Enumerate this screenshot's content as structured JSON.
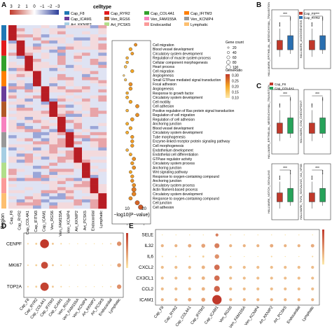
{
  "panels": {
    "A": "A",
    "B": "B",
    "C": "C",
    "D": "D",
    "E": "E"
  },
  "colors": {
    "cap_f8": "#1f78b4",
    "cap_ryr2": "#e31a1c",
    "cap_col4a1": "#33a02c",
    "cap_ifitm3": "#ff7f00",
    "cap_icam1": "#6a3d9a",
    "ven_rgs6": "#b15928",
    "ven_fam155a": "#f781bf",
    "ven_kcnip4": "#999999",
    "art_kknip2": "#a6cee3",
    "art_pcsk5": "#b2df8a",
    "endocardial": "#fb9a99",
    "lymphatic": "#fdbf6f",
    "heat_high": "#c0392b",
    "heat_low": "#2c3e9a",
    "dot_low": "#fde9a9",
    "dot_high": "#c0392b",
    "box_f8": "#c0392b",
    "box_ryr2": "#2a6fb0",
    "box_col4a1": "#27a35a"
  },
  "heatmap": {
    "scale_ticks": [
      "3",
      "2",
      "1",
      "0",
      "−1",
      "−2",
      "−3"
    ],
    "legend_title": "celltype",
    "legend_items": [
      "Cap_F8",
      "Cap_RYR2",
      "Cap_COL4A1",
      "Cap_IFITM3",
      "Cap_ICAM1",
      "Ven_RGS6",
      "Ven_FAM155A",
      "Ven_KCNIP4",
      "Art_KKNIP2",
      "Art_PCSK5",
      "Endocardial",
      "Lymphatic"
    ],
    "legend_keys": [
      "cap_f8",
      "cap_ryr2",
      "cap_col4a1",
      "cap_ifitm3",
      "cap_icam1",
      "ven_rgs6",
      "ven_fam155a",
      "ven_kcnip4",
      "art_kknip2",
      "art_pcsk5",
      "endocardial",
      "lymphatic"
    ],
    "columns": [
      "Cap_F8",
      "Cap_RYR2",
      "Cap_COL4A1",
      "Cap_IFITM3",
      "Cap_ICAM1",
      "Ven_RGS6",
      "Ven_FAM155A",
      "Ven_KCNIP4",
      "Art_KKNIP2",
      "Art_PCSK5",
      "Endocardial",
      "Lymphatic"
    ],
    "row_label": "Region"
  },
  "go": {
    "terms": [
      "Cell migration",
      "Blood vessel development",
      "Circulatory system development",
      "Regulation of muscle system process",
      "Cellular component morphogenesis",
      "Heart process",
      "Cell migration",
      "Angiogenesis",
      "Small GTPase mediated signal transduction",
      "Focal adhesion",
      "Angiogenesis",
      "Response to growth factor",
      "Circulatory system development",
      "Cell motility",
      "Cell adhesion",
      "Positive regulation of Ras protein signal transduction",
      "Regulation of cell migration",
      "Regulation of cell adhesion",
      "Anchoring junction",
      "Blood vessel development",
      "Circulatory system development",
      "Tube morphogenesis",
      "Enzyme-linked receptor protein signaling pathway",
      "Cell morphogenesis",
      "Endothelium development",
      "Endothelial cell differentiation",
      "GTPase regulator activity",
      "Circulatory system process",
      "Anchoring junction",
      "Wnt signaling pathway",
      "Response to oxygen-containing compound",
      "Anchoring junction",
      "Circulatory system process",
      "Actin filament-based process",
      "Circulatory system development",
      "Response to oxygen-containing compound",
      "Cell junction",
      "Cell adhesion"
    ],
    "xlabel": "−log10(P−value)",
    "x_ticks": [
      "10",
      "20"
    ],
    "size_legend_title": "Gene count",
    "size_legend_values": [
      "20",
      "40",
      "60",
      "80",
      "100"
    ],
    "color_legend_title": "GeneRatio",
    "color_legend_values": [
      "0.30",
      "0.25",
      "0.20",
      "0.15",
      "0.10"
    ]
  },
  "boxplots": [
    {
      "ylabel": "HALLMARK_EPITHELIAL_MESENCHYMAL_TRANSITION",
      "group": "B",
      "sig": "***",
      "legend": [
        "Cap_F8",
        "Cap_RYR2"
      ],
      "colors": [
        "box_f8",
        "box_ryr2"
      ]
    },
    {
      "ylabel": "HALLMARK_ANGIOGENESIS",
      "group": "B",
      "sig": "***",
      "legend": [
        "Cap_F8",
        "Cap_RYR2"
      ],
      "colors": [
        "box_f8",
        "box_ryr2"
      ]
    },
    {
      "ylabel": "HALLMARK_EPITHELIAL_MESENCHYMAL_TRANSITION",
      "group": "C",
      "sig": "***",
      "legend": [
        "Cap_F8",
        "Cap_COL4A1"
      ],
      "colors": [
        "box_f8",
        "box_col4a1"
      ]
    },
    {
      "ylabel": "HALLMARK_G2M_CHECKPOINT",
      "group": "C",
      "sig": "***",
      "legend": [
        "Cap_F8",
        "Cap_COL4A1"
      ],
      "colors": [
        "box_f8",
        "box_col4a1"
      ]
    },
    {
      "ylabel": "HALLMARK_NOTCH_SIGNALING",
      "group": "C",
      "sig": "***",
      "legend": [
        "Cap_F8",
        "Cap_COL4A1"
      ],
      "colors": [
        "box_f8",
        "box_col4a1"
      ]
    },
    {
      "ylabel": "HALLMARK_TNFA_SIGNALING_VIA_NFKB",
      "group": "C",
      "sig": "***",
      "legend": [
        "Cap_F8",
        "Cap_COL4A1"
      ],
      "colors": [
        "box_f8",
        "box_col4a1"
      ]
    }
  ],
  "dotD": {
    "genes": [
      "CENPF",
      "MKI67",
      "TOP2A"
    ],
    "columns": [
      "Cap_F8",
      "Cap_RYR2",
      "Cap_COL4A1",
      "Cap_IFITM3",
      "Cap_ICAM1",
      "Ven_RGS6",
      "Ven_FAM155A",
      "Ven_KCNIP4",
      "Art_KKNIP2",
      "Art_PCSK5",
      "Endocardial",
      "Lymphatic"
    ],
    "sizes": [
      [
        0.15,
        0.2,
        0.9,
        0.2,
        0.15,
        0.1,
        0.1,
        0.1,
        0.1,
        0.1,
        0.15,
        0.45
      ],
      [
        0.15,
        0.2,
        0.7,
        0.2,
        0.15,
        0.1,
        0.1,
        0.1,
        0.1,
        0.1,
        0.1,
        0.4
      ],
      [
        0.15,
        0.2,
        0.85,
        0.2,
        0.15,
        0.1,
        0.1,
        0.1,
        0.1,
        0.1,
        0.15,
        0.45
      ]
    ],
    "intensity": [
      [
        0.1,
        0.15,
        1.0,
        0.2,
        0.1,
        0.05,
        0.05,
        0.05,
        0.05,
        0.05,
        0.1,
        0.5
      ],
      [
        0.1,
        0.15,
        0.9,
        0.2,
        0.1,
        0.05,
        0.05,
        0.05,
        0.05,
        0.05,
        0.05,
        0.4
      ],
      [
        0.1,
        0.15,
        0.95,
        0.2,
        0.1,
        0.05,
        0.05,
        0.05,
        0.05,
        0.05,
        0.1,
        0.5
      ]
    ]
  },
  "dotE": {
    "genes": [
      "SELE",
      "IL32",
      "IL6",
      "CXCL2",
      "CX3CL1",
      "CCL2",
      "ICAM1"
    ],
    "columns": [
      "Cap_F8",
      "Cap_RYR2",
      "Cap_COL4A1",
      "Cap_IFITM3",
      "Cap_ICAM1",
      "Ven_RGS6",
      "Ven_FAM155A",
      "Ven_KCNIP4",
      "Art_KKNIP2",
      "Art_PCSK5",
      "Endocardial",
      "Lymphatic"
    ],
    "sizes": [
      [
        0.1,
        0.1,
        0.1,
        0.1,
        0.3,
        0.1,
        0.1,
        0.1,
        0.1,
        0.1,
        0.1,
        0.1
      ],
      [
        0.3,
        0.3,
        0.35,
        0.4,
        0.5,
        0.3,
        0.3,
        0.3,
        0.35,
        0.3,
        0.3,
        0.35
      ],
      [
        0.15,
        0.15,
        0.15,
        0.2,
        0.45,
        0.1,
        0.1,
        0.1,
        0.15,
        0.1,
        0.1,
        0.15
      ],
      [
        0.3,
        0.3,
        0.3,
        0.35,
        0.55,
        0.3,
        0.3,
        0.3,
        0.3,
        0.3,
        0.3,
        0.3
      ],
      [
        0.3,
        0.3,
        0.3,
        0.35,
        0.55,
        0.3,
        0.3,
        0.3,
        0.3,
        0.3,
        0.3,
        0.3
      ],
      [
        0.3,
        0.3,
        0.3,
        0.35,
        0.6,
        0.3,
        0.3,
        0.3,
        0.3,
        0.3,
        0.3,
        0.3
      ],
      [
        0.3,
        0.3,
        0.35,
        0.4,
        0.95,
        0.3,
        0.3,
        0.3,
        0.3,
        0.3,
        0.3,
        0.3
      ]
    ],
    "intensity": [
      [
        0.05,
        0.05,
        0.05,
        0.05,
        0.6,
        0.05,
        0.05,
        0.05,
        0.05,
        0.05,
        0.05,
        0.05
      ],
      [
        0.3,
        0.3,
        0.35,
        0.4,
        0.6,
        0.3,
        0.3,
        0.3,
        0.35,
        0.3,
        0.3,
        0.35
      ],
      [
        0.1,
        0.1,
        0.1,
        0.15,
        0.5,
        0.05,
        0.05,
        0.05,
        0.1,
        0.05,
        0.05,
        0.1
      ],
      [
        0.25,
        0.25,
        0.25,
        0.3,
        0.7,
        0.25,
        0.25,
        0.25,
        0.25,
        0.25,
        0.25,
        0.25
      ],
      [
        0.25,
        0.25,
        0.25,
        0.3,
        0.7,
        0.25,
        0.25,
        0.25,
        0.25,
        0.25,
        0.25,
        0.25
      ],
      [
        0.25,
        0.25,
        0.25,
        0.3,
        0.75,
        0.25,
        0.25,
        0.25,
        0.25,
        0.25,
        0.25,
        0.25
      ],
      [
        0.3,
        0.3,
        0.35,
        0.4,
        1.0,
        0.3,
        0.3,
        0.3,
        0.3,
        0.3,
        0.3,
        0.3
      ]
    ]
  }
}
